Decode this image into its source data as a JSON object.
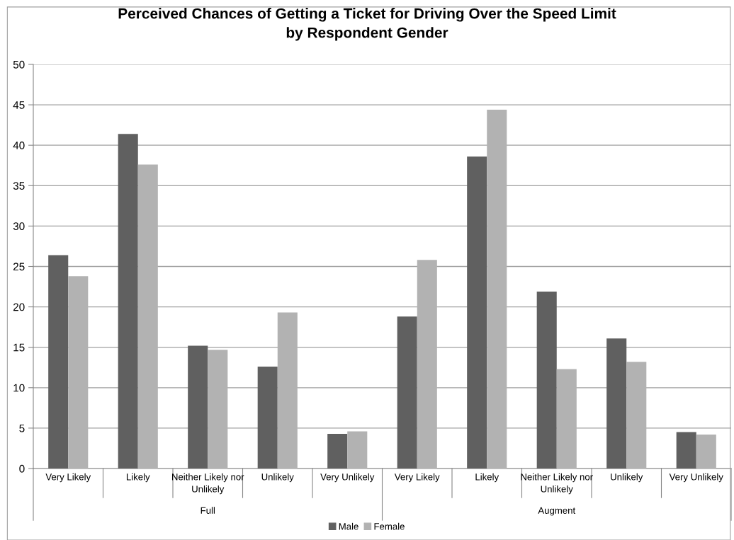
{
  "chart_data": {
    "type": "bar",
    "title": "Perceived Chances of Getting a Ticket for Driving Over the Speed Limit\nby Respondent Gender",
    "categories": [
      "Very Likely",
      "Likely",
      "Neither Likely nor Unlikely",
      "Unlikely",
      "Very Unlikely",
      "Very Likely",
      "Likely",
      "Neither Likely nor Unlikely",
      "Unlikely",
      "Very Unlikely"
    ],
    "series": [
      {
        "name": "Male",
        "color": "#606060",
        "values": [
          26.4,
          41.4,
          15.2,
          12.6,
          4.3,
          18.8,
          38.6,
          21.9,
          16.1,
          4.5
        ]
      },
      {
        "name": "Female",
        "color": "#b2b2b2",
        "values": [
          23.8,
          37.6,
          14.7,
          19.3,
          4.6,
          25.8,
          44.4,
          12.3,
          13.2,
          4.2
        ]
      }
    ],
    "annotations": [
      "Full",
      "Augment"
    ],
    "ylim": [
      0,
      50
    ],
    "yticks": [
      0,
      5,
      10,
      15,
      20,
      25,
      30,
      35,
      40,
      45,
      50
    ],
    "grid": "y",
    "legend": "bottom"
  }
}
